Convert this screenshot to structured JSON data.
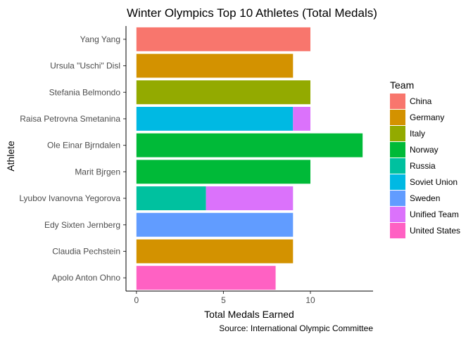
{
  "chart_data": {
    "type": "bar",
    "orientation": "horizontal",
    "stacked": true,
    "title": "Winter Olympics Top 10 Athletes (Total Medals)",
    "xlabel": "Total Medals Earned",
    "ylabel": "Athlete",
    "caption": "Source: International Olympic Committee",
    "xlim": [
      -0.6,
      13.6
    ],
    "x_ticks": [
      0,
      5,
      10
    ],
    "grid": false,
    "legend": {
      "title": "Team",
      "position": "right"
    },
    "categories": [
      "Yang Yang",
      "Ursula \"Uschi\" Disl",
      "Stefania Belmondo",
      "Raisa Petrovna Smetanina",
      "Ole Einar Bjrndalen",
      "Marit Bjrgen",
      "Lyubov Ivanovna Yegorova",
      "Edy Sixten Jernberg",
      "Claudia Pechstein",
      "Apolo Anton Ohno"
    ],
    "series": [
      {
        "name": "China",
        "color": "#F8766D",
        "values": [
          10,
          0,
          0,
          0,
          0,
          0,
          0,
          0,
          0,
          0
        ]
      },
      {
        "name": "Germany",
        "color": "#D39200",
        "values": [
          0,
          9,
          0,
          0,
          0,
          0,
          0,
          0,
          9,
          0
        ]
      },
      {
        "name": "Italy",
        "color": "#93AA00",
        "values": [
          0,
          0,
          10,
          0,
          0,
          0,
          0,
          0,
          0,
          0
        ]
      },
      {
        "name": "Norway",
        "color": "#00BA38",
        "values": [
          0,
          0,
          0,
          0,
          13,
          10,
          0,
          0,
          0,
          0
        ]
      },
      {
        "name": "Russia",
        "color": "#00C19F",
        "values": [
          0,
          0,
          0,
          0,
          0,
          0,
          4,
          0,
          0,
          0
        ]
      },
      {
        "name": "Soviet Union",
        "color": "#00B9E3",
        "values": [
          0,
          0,
          0,
          9,
          0,
          0,
          0,
          0,
          0,
          0
        ]
      },
      {
        "name": "Sweden",
        "color": "#619CFF",
        "values": [
          0,
          0,
          0,
          0,
          0,
          0,
          0,
          9,
          0,
          0
        ]
      },
      {
        "name": "Unified Team",
        "color": "#DB72FB",
        "values": [
          0,
          0,
          0,
          1,
          0,
          0,
          5,
          0,
          0,
          0
        ]
      },
      {
        "name": "United States",
        "color": "#FF61C3",
        "values": [
          0,
          0,
          0,
          0,
          0,
          0,
          0,
          0,
          0,
          8
        ]
      }
    ]
  }
}
